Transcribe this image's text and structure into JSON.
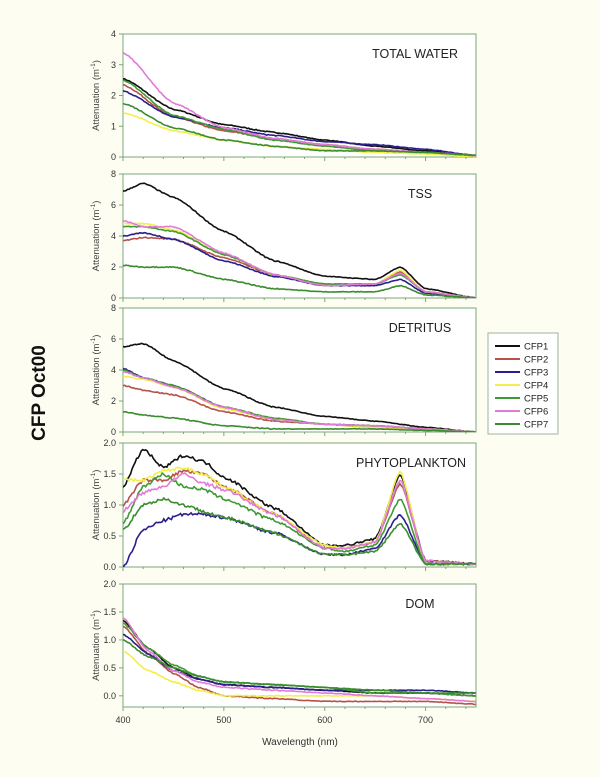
{
  "figure_title": "CFP Oct00",
  "chart_data": {
    "type": "line",
    "title": "CFP Oct00",
    "xlabel": "Wavelength (nm)",
    "xlim": [
      400,
      750
    ],
    "xticks": [
      400,
      500,
      600,
      700
    ],
    "legend": {
      "placement": "right",
      "entries": [
        "CFP1",
        "CFP2",
        "CFP3",
        "CFP4",
        "CFP5",
        "CFP6",
        "CFP7"
      ]
    },
    "series_colors": {
      "CFP1": "#111111",
      "CFP2": "#b5524a",
      "CFP3": "#2a1f8c",
      "CFP4": "#f2ef4a",
      "CFP5": "#3f9a35",
      "CFP6": "#e27ad8",
      "CFP7": "#3b8c2e"
    },
    "grid": false,
    "panels": [
      {
        "title": "TOTAL WATER",
        "ylabel": "Attenuation (m-1)",
        "ylim": [
          0,
          4
        ],
        "yticks": [
          "0",
          "1",
          "2",
          "3",
          "4"
        ],
        "x": [
          400,
          450,
          500,
          550,
          600,
          650,
          700,
          750
        ],
        "series": [
          {
            "name": "CFP1",
            "values": [
              2.55,
              1.55,
              1.05,
              0.8,
              0.55,
              0.35,
              0.2,
              0.05
            ]
          },
          {
            "name": "CFP2",
            "values": [
              2.35,
              1.3,
              0.85,
              0.6,
              0.4,
              0.25,
              0.15,
              0.05
            ]
          },
          {
            "name": "CFP3",
            "values": [
              2.15,
              1.3,
              0.95,
              0.7,
              0.5,
              0.4,
              0.25,
              0.05
            ]
          },
          {
            "name": "CFP4",
            "values": [
              1.45,
              0.85,
              0.55,
              0.35,
              0.25,
              0.15,
              0.1,
              0.0
            ]
          },
          {
            "name": "CFP5",
            "values": [
              2.5,
              1.35,
              0.9,
              0.55,
              0.35,
              0.2,
              0.15,
              0.05
            ]
          },
          {
            "name": "CFP6",
            "values": [
              3.4,
              1.75,
              0.95,
              0.6,
              0.4,
              0.25,
              0.15,
              0.05
            ]
          },
          {
            "name": "CFP7",
            "values": [
              1.75,
              0.95,
              0.55,
              0.35,
              0.2,
              0.2,
              0.15,
              0.05
            ]
          }
        ]
      },
      {
        "title": "TSS",
        "ylabel": "Attenuation (m-1)",
        "ylim": [
          0,
          8
        ],
        "yticks": [
          "0",
          "2",
          "4",
          "6",
          "8"
        ],
        "x": [
          400,
          420,
          450,
          500,
          550,
          600,
          650,
          675,
          700,
          750
        ],
        "series": [
          {
            "name": "CFP1",
            "values": [
              6.9,
              7.4,
              6.5,
              4.3,
              2.4,
              1.4,
              1.2,
              2.0,
              0.6,
              0.0
            ]
          },
          {
            "name": "CFP2",
            "values": [
              3.7,
              3.9,
              3.8,
              2.6,
              1.5,
              0.9,
              0.9,
              1.7,
              0.4,
              0.0
            ]
          },
          {
            "name": "CFP3",
            "values": [
              4.0,
              4.2,
              3.8,
              2.4,
              1.4,
              0.8,
              0.8,
              1.2,
              0.3,
              0.0
            ]
          },
          {
            "name": "CFP4",
            "values": [
              4.8,
              4.8,
              4.4,
              2.8,
              1.5,
              0.9,
              0.9,
              1.8,
              0.4,
              0.0
            ]
          },
          {
            "name": "CFP5",
            "values": [
              4.6,
              4.6,
              4.3,
              2.8,
              1.5,
              0.9,
              0.9,
              1.5,
              0.4,
              0.0
            ]
          },
          {
            "name": "CFP6",
            "values": [
              5.0,
              4.6,
              4.6,
              2.9,
              1.5,
              0.8,
              0.9,
              1.6,
              0.4,
              0.0
            ]
          },
          {
            "name": "CFP7",
            "values": [
              2.1,
              2.0,
              2.0,
              1.2,
              0.6,
              0.4,
              0.4,
              0.8,
              0.2,
              0.0
            ]
          }
        ]
      },
      {
        "title": "DETRITUS",
        "ylabel": "Attenuation (m-1)",
        "ylim": [
          0,
          8
        ],
        "yticks": [
          "0",
          "2",
          "4",
          "6",
          "8"
        ],
        "x": [
          400,
          420,
          450,
          500,
          550,
          600,
          650,
          700,
          750
        ],
        "series": [
          {
            "name": "CFP1",
            "values": [
              5.5,
              5.7,
              4.6,
              2.8,
              1.6,
              1.0,
              0.7,
              0.3,
              0.0
            ]
          },
          {
            "name": "CFP2",
            "values": [
              3.0,
              2.7,
              2.4,
              1.3,
              0.7,
              0.5,
              0.3,
              0.2,
              0.0
            ]
          },
          {
            "name": "CFP3",
            "values": [
              4.1,
              3.5,
              3.0,
              1.6,
              0.8,
              0.5,
              0.4,
              0.2,
              0.0
            ]
          },
          {
            "name": "CFP4",
            "values": [
              3.6,
              3.4,
              2.9,
              1.5,
              0.8,
              0.5,
              0.3,
              0.2,
              0.0
            ]
          },
          {
            "name": "CFP5",
            "values": [
              4.0,
              3.5,
              3.0,
              1.6,
              0.9,
              0.5,
              0.4,
              0.2,
              0.0
            ]
          },
          {
            "name": "CFP6",
            "values": [
              3.9,
              3.5,
              2.9,
              1.6,
              0.8,
              0.5,
              0.4,
              0.2,
              0.0
            ]
          },
          {
            "name": "CFP7",
            "values": [
              1.3,
              1.1,
              0.9,
              0.4,
              0.2,
              0.2,
              0.2,
              0.1,
              0.0
            ]
          }
        ]
      },
      {
        "title": "PHYTOPLANKTON",
        "ylabel": "Attenuation (m-1)",
        "ylim": [
          0,
          2
        ],
        "yticks": [
          "0.0",
          "0.5",
          "1.0",
          "1.5",
          "2.0"
        ],
        "x": [
          400,
          420,
          440,
          460,
          480,
          500,
          550,
          600,
          620,
          650,
          675,
          700,
          750
        ],
        "series": [
          {
            "name": "CFP1",
            "values": [
              1.3,
              1.9,
              1.6,
              1.8,
              1.7,
              1.45,
              0.95,
              0.35,
              0.35,
              0.45,
              1.5,
              0.1,
              0.05
            ]
          },
          {
            "name": "CFP2",
            "values": [
              1.0,
              1.4,
              1.4,
              1.55,
              1.5,
              1.3,
              0.85,
              0.3,
              0.3,
              0.4,
              1.35,
              0.1,
              0.05
            ]
          },
          {
            "name": "CFP3",
            "values": [
              0.0,
              0.6,
              0.75,
              0.85,
              0.85,
              0.8,
              0.55,
              0.2,
              0.2,
              0.3,
              0.85,
              0.05,
              0.05
            ]
          },
          {
            "name": "CFP4",
            "values": [
              1.4,
              1.4,
              1.55,
              1.6,
              1.5,
              1.3,
              0.85,
              0.35,
              0.3,
              0.4,
              1.55,
              0.05,
              0.05
            ]
          },
          {
            "name": "CFP5",
            "values": [
              0.7,
              1.3,
              1.5,
              1.3,
              1.25,
              1.1,
              0.75,
              0.3,
              0.25,
              0.35,
              1.1,
              0.05,
              0.05
            ]
          },
          {
            "name": "CFP6",
            "values": [
              0.9,
              1.2,
              1.3,
              1.5,
              1.35,
              1.25,
              0.85,
              0.3,
              0.3,
              0.4,
              1.4,
              0.1,
              0.05
            ]
          },
          {
            "name": "CFP7",
            "values": [
              0.6,
              1.0,
              1.1,
              1.0,
              0.9,
              0.8,
              0.55,
              0.2,
              0.2,
              0.25,
              0.7,
              0.05,
              0.05
            ]
          }
        ]
      },
      {
        "title": "DOM",
        "ylabel": "Attenuation (m-1)",
        "ylim": [
          -0.2,
          2
        ],
        "yticks": [
          "0.0",
          "0.5",
          "1.0",
          "1.5",
          "2.0"
        ],
        "ytick_values": [
          0,
          0.5,
          1.0,
          1.5,
          2.0
        ],
        "x": [
          400,
          425,
          450,
          475,
          500,
          550,
          600,
          650,
          700,
          750
        ],
        "series": [
          {
            "name": "CFP1",
            "values": [
              1.35,
              0.85,
              0.5,
              0.3,
              0.2,
              0.15,
              0.1,
              0.05,
              0.05,
              0.0
            ]
          },
          {
            "name": "CFP2",
            "values": [
              1.25,
              0.75,
              0.4,
              0.15,
              0.0,
              -0.05,
              -0.1,
              -0.1,
              -0.1,
              -0.15
            ]
          },
          {
            "name": "CFP3",
            "values": [
              1.1,
              0.75,
              0.45,
              0.3,
              0.2,
              0.15,
              0.1,
              0.1,
              0.1,
              0.05
            ]
          },
          {
            "name": "CFP4",
            "values": [
              0.8,
              0.45,
              0.25,
              0.1,
              0.0,
              0.0,
              0.0,
              0.0,
              -0.05,
              -0.1
            ]
          },
          {
            "name": "CFP5",
            "values": [
              1.3,
              0.85,
              0.55,
              0.35,
              0.25,
              0.2,
              0.15,
              0.05,
              0.05,
              0.0
            ]
          },
          {
            "name": "CFP6",
            "values": [
              1.4,
              0.8,
              0.45,
              0.25,
              0.15,
              0.1,
              0.05,
              0.0,
              -0.05,
              -0.1
            ]
          },
          {
            "name": "CFP7",
            "values": [
              1.0,
              0.7,
              0.5,
              0.35,
              0.25,
              0.2,
              0.15,
              0.1,
              0.05,
              0.05
            ]
          }
        ]
      }
    ]
  }
}
